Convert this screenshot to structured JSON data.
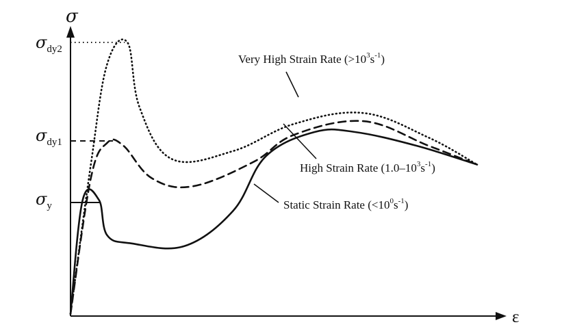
{
  "chart_data": {
    "type": "line",
    "xlabel": "ε",
    "ylabel": "σ",
    "y_levels": [
      {
        "symbol": "σ",
        "subscript": "dy2",
        "value": 1.0
      },
      {
        "symbol": "σ",
        "subscript": "dy1",
        "value": 0.63
      },
      {
        "symbol": "σ",
        "subscript": "y",
        "value": 0.42
      }
    ],
    "series": [
      {
        "name_parts": [
          "Very High Strain Rate (>10",
          "3",
          "s",
          "-1",
          ")"
        ],
        "style": "dotted",
        "points": [
          [
            0,
            0
          ],
          [
            0.05,
            0.55
          ],
          [
            0.09,
            0.92
          ],
          [
            0.14,
            1.0
          ],
          [
            0.17,
            0.76
          ],
          [
            0.25,
            0.57
          ],
          [
            0.4,
            0.6
          ],
          [
            0.55,
            0.7
          ],
          [
            0.72,
            0.74
          ],
          [
            0.88,
            0.65
          ],
          [
            1.0,
            0.55
          ]
        ]
      },
      {
        "name_parts": [
          "High Strain Rate (1.0–10",
          "3",
          "s",
          "-1",
          ")"
        ],
        "style": "dashed",
        "points": [
          [
            0,
            0
          ],
          [
            0.05,
            0.5
          ],
          [
            0.09,
            0.63
          ],
          [
            0.13,
            0.62
          ],
          [
            0.2,
            0.5
          ],
          [
            0.3,
            0.47
          ],
          [
            0.45,
            0.56
          ],
          [
            0.55,
            0.66
          ],
          [
            0.72,
            0.71
          ],
          [
            0.88,
            0.62
          ],
          [
            1.0,
            0.55
          ]
        ]
      },
      {
        "name_parts": [
          "Static Strain Rate (<10",
          "0",
          "s",
          "-1",
          ")"
        ],
        "style": "solid",
        "points": [
          [
            0,
            0
          ],
          [
            0.03,
            0.42
          ],
          [
            0.07,
            0.42
          ],
          [
            0.09,
            0.29
          ],
          [
            0.15,
            0.26
          ],
          [
            0.28,
            0.25
          ],
          [
            0.4,
            0.38
          ],
          [
            0.48,
            0.58
          ],
          [
            0.6,
            0.67
          ],
          [
            0.7,
            0.67
          ],
          [
            0.85,
            0.62
          ],
          [
            1.0,
            0.55
          ]
        ]
      }
    ]
  }
}
